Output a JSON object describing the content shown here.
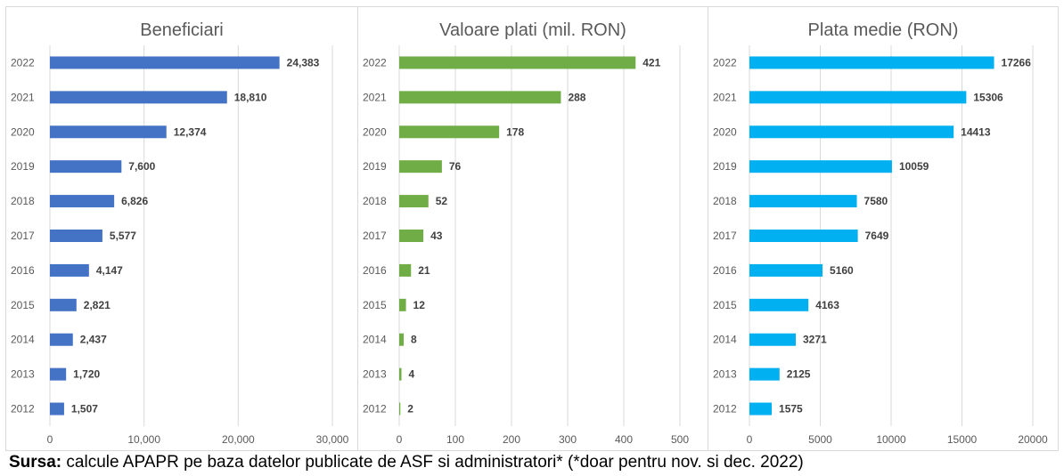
{
  "chart_data": [
    {
      "type": "bar",
      "orientation": "horizontal",
      "title": "Beneficiari",
      "categories": [
        "2012",
        "2013",
        "2014",
        "2015",
        "2016",
        "2017",
        "2018",
        "2019",
        "2020",
        "2021",
        "2022"
      ],
      "values": [
        1507,
        1720,
        2437,
        2821,
        4147,
        5577,
        6826,
        7600,
        12374,
        18810,
        24383
      ],
      "value_labels": [
        "1,507",
        "1,720",
        "2,437",
        "2,821",
        "4,147",
        "5,577",
        "6,826",
        "7,600",
        "12,374",
        "18,810",
        "24,383"
      ],
      "xlim": [
        0,
        30000
      ],
      "xticks": [
        0,
        10000,
        20000,
        30000
      ],
      "xtick_labels": [
        "0",
        "10,000",
        "20,000",
        "30,000"
      ],
      "color": "#4472C4",
      "grid": true
    },
    {
      "type": "bar",
      "orientation": "horizontal",
      "title": "Valoare plati (mil. RON)",
      "categories": [
        "2012",
        "2013",
        "2014",
        "2015",
        "2016",
        "2017",
        "2018",
        "2019",
        "2020",
        "2021",
        "2022"
      ],
      "values": [
        2,
        4,
        8,
        12,
        21,
        43,
        52,
        76,
        178,
        288,
        421
      ],
      "value_labels": [
        "2",
        "4",
        "8",
        "12",
        "21",
        "43",
        "52",
        "76",
        "178",
        "288",
        "421"
      ],
      "xlim": [
        0,
        500
      ],
      "xticks": [
        0,
        100,
        200,
        300,
        400,
        500
      ],
      "xtick_labels": [
        "0",
        "100",
        "200",
        "300",
        "400",
        "500"
      ],
      "color": "#70AD47",
      "grid": true
    },
    {
      "type": "bar",
      "orientation": "horizontal",
      "title": "Plata medie (RON)",
      "categories": [
        "2012",
        "2013",
        "2014",
        "2015",
        "2016",
        "2017",
        "2018",
        "2019",
        "2020",
        "2021",
        "2022"
      ],
      "values": [
        1575,
        2125,
        3271,
        4163,
        5160,
        7649,
        7580,
        10059,
        14413,
        15306,
        17266
      ],
      "value_labels": [
        "1575",
        "2125",
        "3271",
        "4163",
        "5160",
        "7649",
        "7580",
        "10059",
        "14413",
        "15306",
        "17266"
      ],
      "xlim": [
        0,
        20000
      ],
      "xticks": [
        0,
        5000,
        10000,
        15000,
        20000
      ],
      "xtick_labels": [
        "0",
        "5000",
        "10000",
        "15000",
        "20000"
      ],
      "color": "#00B0F0",
      "grid": true
    }
  ],
  "source": {
    "label": "Sursa:",
    "text": " calcule APAPR pe baza datelor publicate de ASF si administratori* (*doar pentru nov. si dec. 2022)"
  }
}
